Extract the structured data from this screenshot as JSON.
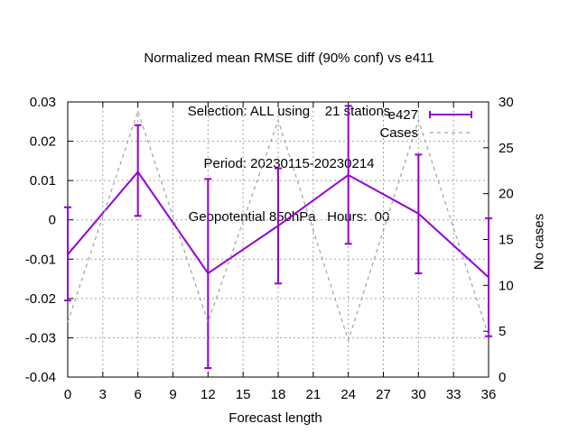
{
  "chart_data": {
    "type": "line",
    "title_lines": [
      "Normalized mean RMSE diff (90% conf) vs e411",
      "Selection: ALL using    21 stations",
      "Period: 20230115-20230214",
      "Geopotential 850hPa   Hours:  00"
    ],
    "xlabel": "Forecast length",
    "ylabel": "",
    "y2label": "No cases",
    "xlim": [
      0,
      36
    ],
    "ylim": [
      -0.04,
      0.03
    ],
    "y2lim": [
      0,
      30
    ],
    "x_ticks": [
      "0",
      "3",
      "6",
      "9",
      "12",
      "15",
      "18",
      "21",
      "24",
      "27",
      "30",
      "33",
      "36"
    ],
    "y_ticks": [
      "-0.04",
      "-0.03",
      "-0.02",
      "-0.01",
      "0",
      "0.01",
      "0.02",
      "0.03"
    ],
    "y2_ticks": [
      "0",
      "5",
      "10",
      "15",
      "20",
      "25",
      "30"
    ],
    "grid": true,
    "legend_position": "top-right",
    "series": [
      {
        "name": "e427",
        "axis": "y",
        "color": "#9400d3",
        "style": "solid-errorbars",
        "x": [
          0,
          6,
          12,
          18,
          24,
          30,
          36
        ],
        "y": [
          -0.0088,
          0.0122,
          -0.0136,
          -0.0015,
          0.0114,
          0.0016,
          -0.0146
        ],
        "err_low": [
          -0.0205,
          0.001,
          -0.0377,
          -0.0162,
          -0.0061,
          -0.0136,
          -0.0296
        ],
        "err_high": [
          0.0032,
          0.0241,
          0.0104,
          0.0131,
          0.029,
          0.0166,
          0.0004
        ]
      },
      {
        "name": "Cases",
        "axis": "y2",
        "color": "#a0a0a0",
        "style": "dashed",
        "x": [
          0,
          6,
          12,
          18,
          24,
          30,
          36
        ],
        "y": [
          6,
          29,
          6,
          28,
          4,
          28,
          4.5
        ]
      }
    ]
  }
}
